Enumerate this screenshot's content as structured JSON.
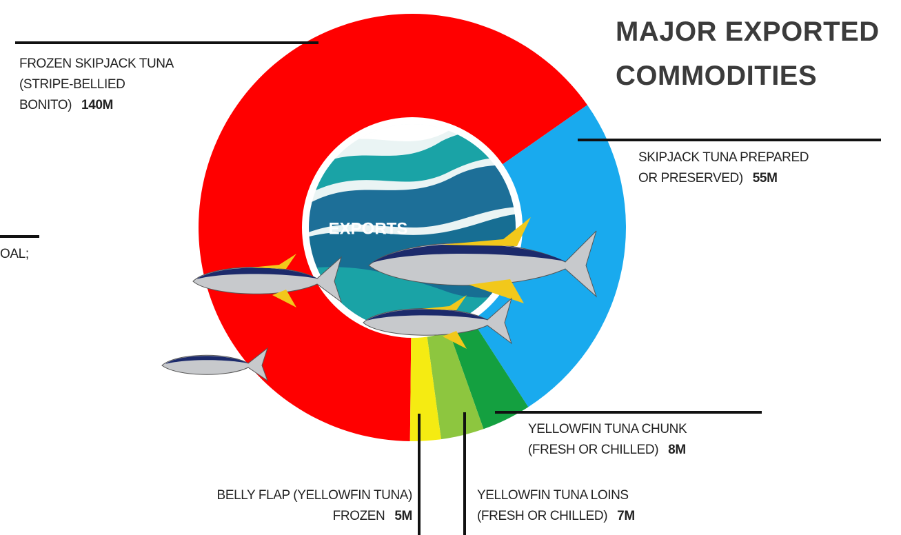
{
  "chart_data": {
    "type": "donut",
    "title": "MAJOR EXPORTED\nCOMMODITIES",
    "center_label": "EXPORTS",
    "cropped_text": "OAL;",
    "categories": [
      "FROZEN SKIPJACK TUNA\n(STRIPE-BELLIED\nBONITO)",
      "SKIPJACK TUNA PREPARED\nOR PRESERVED)",
      "YELLOWFIN TUNA CHUNK\n(FRESH OR CHILLED)",
      "YELLOWFIN TUNA LOINS\n(FRESH OR CHILLED)",
      "BELLY FLAP (YELLOWFIN TUNA)\nFROZEN"
    ],
    "values": [
      140,
      55,
      8,
      7,
      5
    ],
    "value_labels": [
      "140M",
      "55M",
      "8M",
      "7M",
      "5M"
    ],
    "colors": [
      "#ff0000",
      "#19aaee",
      "#14a040",
      "#8dc63f",
      "#f5eb12"
    ]
  }
}
